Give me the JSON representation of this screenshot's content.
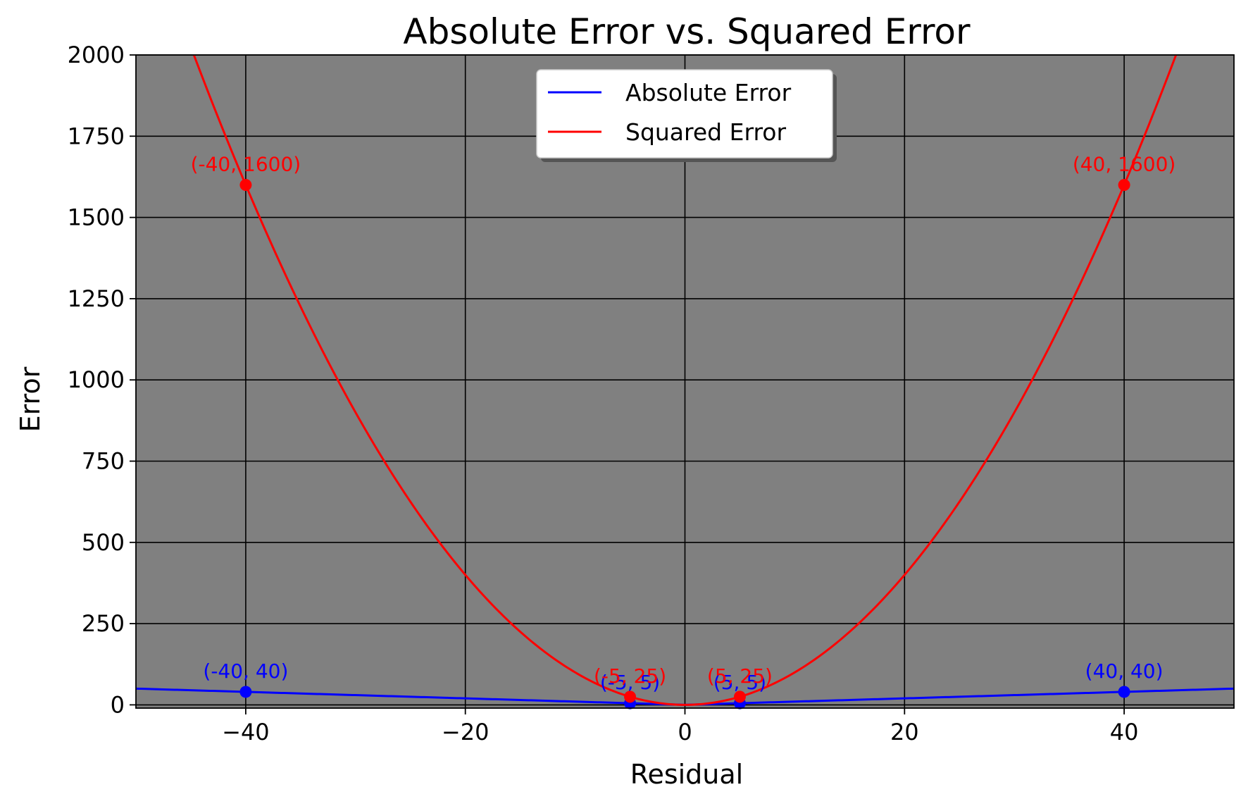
{
  "chart_data": {
    "type": "line",
    "title": "Absolute Error vs. Squared Error",
    "xlabel": "Residual",
    "ylabel": "Error",
    "xlim": [
      -50,
      50
    ],
    "ylim": [
      -10,
      2000
    ],
    "xticks": [
      -40,
      -20,
      0,
      20,
      40
    ],
    "xtick_labels": [
      "−40",
      "−20",
      "0",
      "20",
      "40"
    ],
    "yticks": [
      0,
      250,
      500,
      750,
      1000,
      1250,
      1500,
      1750,
      2000
    ],
    "ytick_labels": [
      "0",
      "250",
      "500",
      "750",
      "1000",
      "1250",
      "1500",
      "1750",
      "2000"
    ],
    "grid": true,
    "plot_background": "#808080",
    "legend_position": "upper center",
    "series": [
      {
        "name": "Absolute Error",
        "function": "abs",
        "color": "#0000ff",
        "highlighted_points": [
          {
            "x": -40,
            "y": 40,
            "label": "(-40, 40)"
          },
          {
            "x": -5,
            "y": 5,
            "label": "(-5, 5)"
          },
          {
            "x": 5,
            "y": 5,
            "label": "(5, 5)"
          },
          {
            "x": 40,
            "y": 40,
            "label": "(40, 40)"
          }
        ]
      },
      {
        "name": "Squared Error",
        "function": "square",
        "color": "#ff0000",
        "highlighted_points": [
          {
            "x": -40,
            "y": 1600,
            "label": "(-40, 1600)"
          },
          {
            "x": -5,
            "y": 25,
            "label": "(-5, 25)"
          },
          {
            "x": 5,
            "y": 25,
            "label": "(5, 25)"
          },
          {
            "x": 40,
            "y": 1600,
            "label": "(40, 1600)"
          }
        ]
      }
    ]
  }
}
